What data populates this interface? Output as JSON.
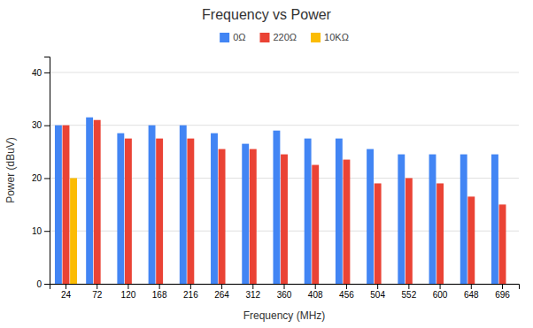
{
  "chart_data": {
    "type": "bar",
    "title": "Frequency vs Power",
    "xlabel": "Frequency (MHz)",
    "ylabel": "Power (dBuV)",
    "categories": [
      24,
      72,
      120,
      168,
      216,
      264,
      312,
      360,
      408,
      456,
      504,
      552,
      600,
      648,
      696
    ],
    "series": [
      {
        "name": "0Ω",
        "color": "#4285F4",
        "values": [
          30,
          31.5,
          28.5,
          30,
          30,
          28.5,
          26.5,
          29,
          27.5,
          27.5,
          25.5,
          24.5,
          24.5,
          24.5,
          24.5
        ]
      },
      {
        "name": "220Ω",
        "color": "#EA4335",
        "values": [
          30,
          31,
          27.5,
          27.5,
          27.5,
          25.5,
          25.5,
          24.5,
          22.5,
          23.5,
          19,
          20,
          19,
          16.5,
          15
        ]
      },
      {
        "name": "10KΩ",
        "color": "#FBBC04",
        "values": [
          20,
          0,
          0,
          0,
          0,
          0,
          0,
          0,
          0,
          0,
          0,
          0,
          0,
          0,
          0
        ]
      }
    ],
    "ylim": [
      0,
      43
    ],
    "yticks": [
      0,
      10,
      20,
      30,
      40
    ],
    "grid": true,
    "legend": "top"
  }
}
